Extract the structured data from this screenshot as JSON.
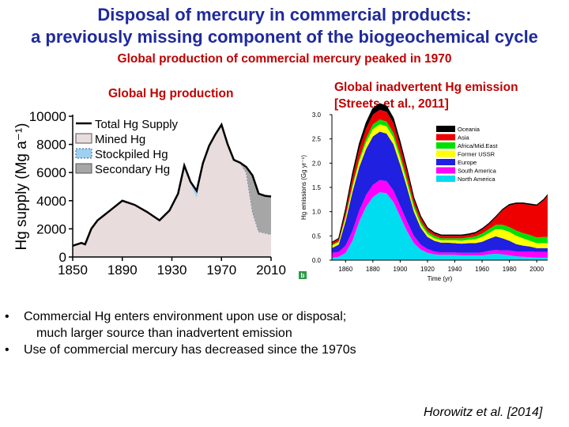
{
  "slide": {
    "title_line1": "Disposal of mercury in commercial products:",
    "title_line2": "a previously missing component of the biogeochemical cycle",
    "subtitle": "Global production of commercial mercury peaked in 1970",
    "left_heading": "Global Hg production",
    "right_heading_line1": "Global inadvertent Hg emission",
    "right_heading_line2": "[Streets et al., 2011]",
    "bullets": [
      {
        "line1": "Commercial Hg enters environment upon use or disposal;",
        "line2": "much larger source than inadvertent emission"
      },
      {
        "line1": "Use of commercial mercury has decreased since the 1970s",
        "line2": ""
      }
    ],
    "citation": "Horowitz et al. [2014]",
    "panel_marker": "b"
  },
  "chart_data": [
    {
      "type": "area",
      "title": "Global Hg production",
      "xlabel": "",
      "ylabel": "Hg supply (Mg a⁻¹)",
      "xlim": [
        1850,
        2010
      ],
      "ylim": [
        0,
        10000
      ],
      "xticks": [
        1850,
        1890,
        1930,
        1970,
        2010
      ],
      "yticks": [
        0,
        2000,
        4000,
        6000,
        8000,
        10000
      ],
      "legend": [
        "Total Hg Supply",
        "Mined Hg",
        "Stockpiled Hg",
        "Secondary Hg"
      ],
      "colors": {
        "total": "#000000",
        "mined": "#e8dcdc",
        "stockpiled": "#9ed0f0",
        "secondary": "#a6a6a6"
      },
      "x": [
        1850,
        1857,
        1860,
        1865,
        1870,
        1880,
        1890,
        1900,
        1910,
        1920,
        1928,
        1935,
        1940,
        1945,
        1950,
        1955,
        1960,
        1965,
        1970,
        1975,
        1980,
        1985,
        1990,
        1995,
        2000,
        2005,
        2010
      ],
      "series": [
        {
          "name": "Mined Hg",
          "values": [
            800,
            1000,
            900,
            2000,
            2600,
            3300,
            4000,
            3700,
            3200,
            2600,
            3300,
            4500,
            6500,
            5200,
            4200,
            6500,
            7800,
            8600,
            9300,
            8000,
            6900,
            6700,
            6000,
            3200,
            1800,
            1700,
            1600
          ]
        },
        {
          "name": "Stockpiled Hg",
          "values": [
            0,
            0,
            0,
            0,
            0,
            0,
            0,
            0,
            0,
            0,
            0,
            0,
            0,
            150,
            500,
            150,
            100,
            100,
            100,
            0,
            0,
            0,
            0,
            0,
            0,
            0,
            0
          ]
        },
        {
          "name": "Secondary Hg",
          "values": [
            0,
            0,
            0,
            0,
            0,
            0,
            0,
            0,
            0,
            0,
            0,
            0,
            0,
            0,
            0,
            0,
            0,
            0,
            0,
            0,
            0,
            0,
            400,
            2600,
            2700,
            2650,
            2700
          ]
        }
      ],
      "total": [
        800,
        1000,
        900,
        2000,
        2600,
        3300,
        4000,
        3700,
        3200,
        2600,
        3300,
        4500,
        6500,
        5350,
        4700,
        6650,
        7900,
        8700,
        9400,
        8000,
        6900,
        6700,
        6400,
        5800,
        4500,
        4350,
        4300
      ]
    },
    {
      "type": "area",
      "title": "",
      "xlabel": "Time (yr)",
      "ylabel": "Hg emissions (Gg yr⁻¹)",
      "xlim": [
        1850,
        2008
      ],
      "ylim": [
        0,
        3.0
      ],
      "xticks": [
        1860,
        1880,
        1900,
        1920,
        1940,
        1960,
        1980,
        2000
      ],
      "yticks": [
        0.0,
        0.5,
        1.0,
        1.5,
        2.0,
        2.5,
        3.0
      ],
      "x": [
        1850,
        1855,
        1860,
        1865,
        1870,
        1875,
        1880,
        1885,
        1890,
        1895,
        1900,
        1905,
        1910,
        1915,
        1920,
        1925,
        1930,
        1935,
        1940,
        1945,
        1950,
        1955,
        1960,
        1965,
        1970,
        1975,
        1980,
        1985,
        1990,
        1995,
        2000,
        2005,
        2008
      ],
      "series": [
        {
          "name": "North America",
          "color": "#00dcf0",
          "values": [
            0.05,
            0.07,
            0.15,
            0.4,
            0.8,
            1.1,
            1.3,
            1.4,
            1.38,
            1.2,
            0.9,
            0.6,
            0.35,
            0.22,
            0.15,
            0.12,
            0.11,
            0.11,
            0.11,
            0.1,
            0.1,
            0.1,
            0.1,
            0.12,
            0.13,
            0.12,
            0.1,
            0.08,
            0.07,
            0.06,
            0.05,
            0.05,
            0.05
          ]
        },
        {
          "name": "South America",
          "color": "#ff00ff",
          "values": [
            0.1,
            0.1,
            0.15,
            0.2,
            0.22,
            0.24,
            0.25,
            0.25,
            0.25,
            0.24,
            0.22,
            0.2,
            0.15,
            0.1,
            0.08,
            0.06,
            0.05,
            0.05,
            0.05,
            0.05,
            0.05,
            0.05,
            0.06,
            0.07,
            0.08,
            0.08,
            0.1,
            0.1,
            0.11,
            0.12,
            0.12,
            0.12,
            0.12
          ]
        },
        {
          "name": "Europe",
          "color": "#2020e0",
          "values": [
            0.1,
            0.15,
            0.5,
            0.8,
            0.9,
            0.95,
            1.0,
            1.0,
            0.98,
            0.95,
            0.85,
            0.7,
            0.5,
            0.35,
            0.25,
            0.22,
            0.2,
            0.2,
            0.19,
            0.19,
            0.2,
            0.2,
            0.22,
            0.25,
            0.28,
            0.25,
            0.2,
            0.15,
            0.12,
            0.1,
            0.08,
            0.08,
            0.08
          ]
        },
        {
          "name": "Former USSR",
          "color": "#ffff00",
          "values": [
            0.05,
            0.05,
            0.08,
            0.1,
            0.12,
            0.14,
            0.15,
            0.15,
            0.15,
            0.14,
            0.12,
            0.1,
            0.08,
            0.07,
            0.06,
            0.05,
            0.05,
            0.05,
            0.06,
            0.06,
            0.07,
            0.08,
            0.1,
            0.12,
            0.15,
            0.18,
            0.18,
            0.17,
            0.15,
            0.12,
            0.1,
            0.1,
            0.1
          ]
        },
        {
          "name": "Africa/Mid.East",
          "color": "#00e000",
          "values": [
            0.02,
            0.02,
            0.03,
            0.05,
            0.06,
            0.08,
            0.1,
            0.1,
            0.1,
            0.1,
            0.09,
            0.08,
            0.07,
            0.06,
            0.05,
            0.05,
            0.04,
            0.04,
            0.04,
            0.05,
            0.05,
            0.06,
            0.07,
            0.08,
            0.09,
            0.1,
            0.1,
            0.11,
            0.11,
            0.12,
            0.12,
            0.13,
            0.13
          ]
        },
        {
          "name": "Asia",
          "color": "#ee0000",
          "values": [
            0.04,
            0.05,
            0.1,
            0.15,
            0.2,
            0.2,
            0.2,
            0.2,
            0.2,
            0.2,
            0.18,
            0.15,
            0.1,
            0.08,
            0.06,
            0.05,
            0.05,
            0.05,
            0.05,
            0.05,
            0.05,
            0.06,
            0.08,
            0.1,
            0.15,
            0.3,
            0.45,
            0.55,
            0.6,
            0.62,
            0.65,
            0.75,
            0.85
          ]
        },
        {
          "name": "Oceania",
          "color": "#000000",
          "values": [
            0.01,
            0.01,
            0.05,
            0.08,
            0.1,
            0.12,
            0.13,
            0.13,
            0.12,
            0.1,
            0.08,
            0.06,
            0.04,
            0.03,
            0.02,
            0.02,
            0.02,
            0.02,
            0.02,
            0.02,
            0.02,
            0.02,
            0.02,
            0.02,
            0.02,
            0.02,
            0.02,
            0.02,
            0.02,
            0.02,
            0.02,
            0.02,
            0.02
          ]
        }
      ]
    }
  ]
}
